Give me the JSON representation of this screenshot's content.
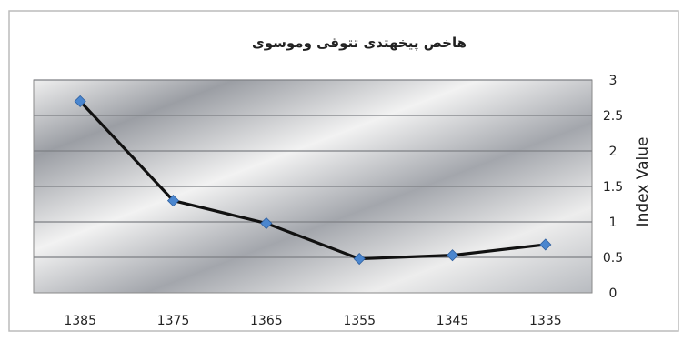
{
  "chart_data": {
    "type": "line",
    "title": "هاخص پیخهتدی تتوقی وموسوی",
    "ylabel": "Index Value",
    "xlabel": "",
    "categories": [
      "1385",
      "1375",
      "1365",
      "1355",
      "1345",
      "1335"
    ],
    "series": [
      {
        "values": [
          2.7,
          1.3,
          0.98,
          0.48,
          0.53,
          0.68
        ]
      }
    ],
    "ylim": [
      0,
      3
    ],
    "yticks": [
      "0",
      "0.5",
      "1",
      "1.5",
      "2",
      "2.5",
      "3"
    ],
    "y_axis_position": "right",
    "grid": true,
    "legend": false,
    "colors": {
      "line": "#111111",
      "marker": "#4a86cf",
      "gridline": "#7d7f84",
      "plot_border": "#8a8a8a"
    }
  }
}
